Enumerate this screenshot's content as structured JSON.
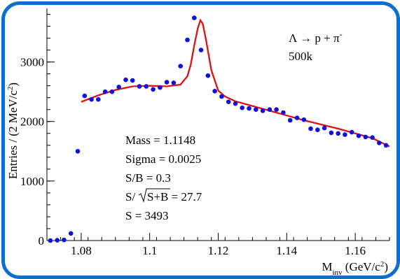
{
  "chart_data": {
    "type": "scatter",
    "title": "",
    "xlabel": "M",
    "xlabel_sub": "inv",
    "xlabel_unit": " (GeV/c",
    "xlabel_sup": "2",
    "xlabel_close": ")",
    "ylabel": "Entries / (2 MeV/c",
    "ylabel_sup": "2",
    "ylabel_close": ")",
    "xlim": [
      1.07,
      1.17
    ],
    "ylim": [
      0,
      3900
    ],
    "x_ticks": [
      1.08,
      1.1,
      1.12,
      1.14,
      1.16
    ],
    "x_tick_labels": [
      "1.08",
      "1.1",
      "1.12",
      "1.14",
      "1.16"
    ],
    "y_ticks": [
      0,
      1000,
      2000,
      3000
    ],
    "y_tick_labels": [
      "0",
      "1000",
      "2000",
      "3000"
    ],
    "marker_color": "#1010dd",
    "fit_color": "#e01010",
    "series": [
      {
        "kind": "points",
        "x": [
          1.071,
          1.073,
          1.075,
          1.077,
          1.079,
          1.081,
          1.083,
          1.085,
          1.087,
          1.089,
          1.091,
          1.093,
          1.095,
          1.097,
          1.099,
          1.101,
          1.103,
          1.105,
          1.107,
          1.109,
          1.111,
          1.113,
          1.115,
          1.117,
          1.119,
          1.121,
          1.123,
          1.125,
          1.127,
          1.129,
          1.131,
          1.133,
          1.135,
          1.137,
          1.139,
          1.141,
          1.143,
          1.145,
          1.147,
          1.149,
          1.151,
          1.153,
          1.155,
          1.157,
          1.159,
          1.161,
          1.163,
          1.165,
          1.167,
          1.169
        ],
        "values": [
          0,
          5,
          10,
          120,
          1500,
          2430,
          2370,
          2370,
          2500,
          2500,
          2580,
          2700,
          2690,
          2590,
          2590,
          2540,
          2570,
          2660,
          2650,
          2930,
          3370,
          3740,
          3200,
          2770,
          2510,
          2420,
          2330,
          2300,
          2230,
          2220,
          2200,
          2180,
          2200,
          2200,
          2150,
          2020,
          2060,
          2030,
          1880,
          1860,
          1890,
          1810,
          1800,
          1780,
          1820,
          1760,
          1740,
          1730,
          1640,
          1600
        ]
      },
      {
        "kind": "fit",
        "x": [
          1.08,
          1.085,
          1.09,
          1.095,
          1.1,
          1.105,
          1.109,
          1.111,
          1.112,
          1.113,
          1.114,
          1.1148,
          1.1155,
          1.1165,
          1.118,
          1.12,
          1.122,
          1.125,
          1.13,
          1.135,
          1.14,
          1.145,
          1.15,
          1.155,
          1.16,
          1.165,
          1.17
        ],
        "values": [
          2330,
          2440,
          2530,
          2590,
          2600,
          2590,
          2620,
          2760,
          2960,
          3280,
          3560,
          3700,
          3640,
          3350,
          2860,
          2520,
          2420,
          2340,
          2260,
          2180,
          2100,
          2020,
          1950,
          1880,
          1800,
          1720,
          1580
        ]
      }
    ],
    "legend": {
      "decay_lhs": "Λ → p + π",
      "decay_sup": "-",
      "events": "500k"
    },
    "annotations": {
      "mass": "Mass = 1.1148",
      "sigma": "Sigma = 0.0025",
      "sb": "S/B = 0.3",
      "sig_prefix": "S/",
      "sig_root": "S+B",
      "sig_value": " = 27.7",
      "s": "S = 3493"
    }
  }
}
